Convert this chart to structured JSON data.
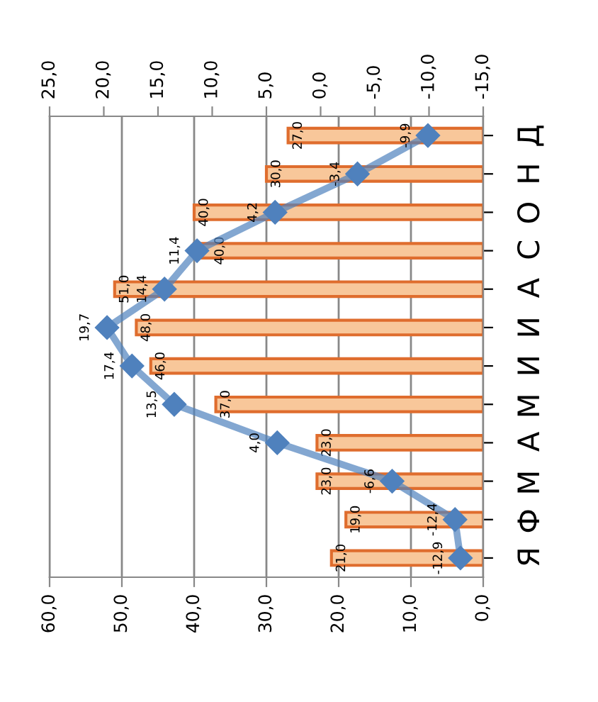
{
  "chart_data": {
    "type": "bar",
    "orientation": "horizontal",
    "categories": [
      "Д",
      "Н",
      "О",
      "С",
      "А",
      "И",
      "И",
      "М",
      "А",
      "М",
      "Ф",
      "Я"
    ],
    "series": [
      {
        "color": "#f8c79a",
        "values": [
          27.0,
          30.0,
          40.0,
          40.0,
          51.0,
          48.0,
          46.0,
          37.0,
          23.0,
          23.0,
          19.0,
          21.0
        ],
        "value_labels": [
          "27,0",
          "30,0",
          "40,0",
          "40,0",
          "51,0",
          "48,0",
          "46,0",
          "37,0",
          "23,0",
          "23,0",
          "19,0",
          "21,0"
        ]
      },
      {
        "type": "line",
        "axis": "x2",
        "color": "#4f81bd",
        "marker": "diamond",
        "values": [
          -9.9,
          -3.4,
          4.2,
          11.4,
          14.4,
          19.7,
          17.4,
          13.5,
          4.0,
          -6.6,
          -12.4,
          -12.9
        ],
        "value_labels": [
          "-9,9",
          "-3,4",
          "4,2",
          "11,4",
          "14,4",
          "19,7",
          "17,4",
          "13,5",
          "4,0",
          "-6,6",
          "-12,4",
          "-12,9"
        ]
      }
    ],
    "xlim": [
      60,
      0
    ],
    "xticks": [
      {
        "value": 60,
        "label": "60,0"
      },
      {
        "value": 50,
        "label": "50,0"
      },
      {
        "value": 40,
        "label": "40,0"
      },
      {
        "value": 30,
        "label": "30,0"
      },
      {
        "value": 20,
        "label": "20,0"
      },
      {
        "value": 10,
        "label": "10,0"
      },
      {
        "value": 0,
        "label": "0,0"
      }
    ],
    "x2lim": [
      25,
      -15
    ],
    "x2ticks": [
      {
        "value": 25,
        "label": "25,0"
      },
      {
        "value": 20,
        "label": "20,0"
      },
      {
        "value": 15,
        "label": "15,0"
      },
      {
        "value": 10,
        "label": "10,0"
      },
      {
        "value": 5,
        "label": "5,0"
      },
      {
        "value": 0,
        "label": "0,0"
      },
      {
        "value": -5,
        "label": "-5,0"
      },
      {
        "value": -10,
        "label": "-10,0"
      },
      {
        "value": -15,
        "label": "-15,0"
      }
    ],
    "grid": "x"
  }
}
